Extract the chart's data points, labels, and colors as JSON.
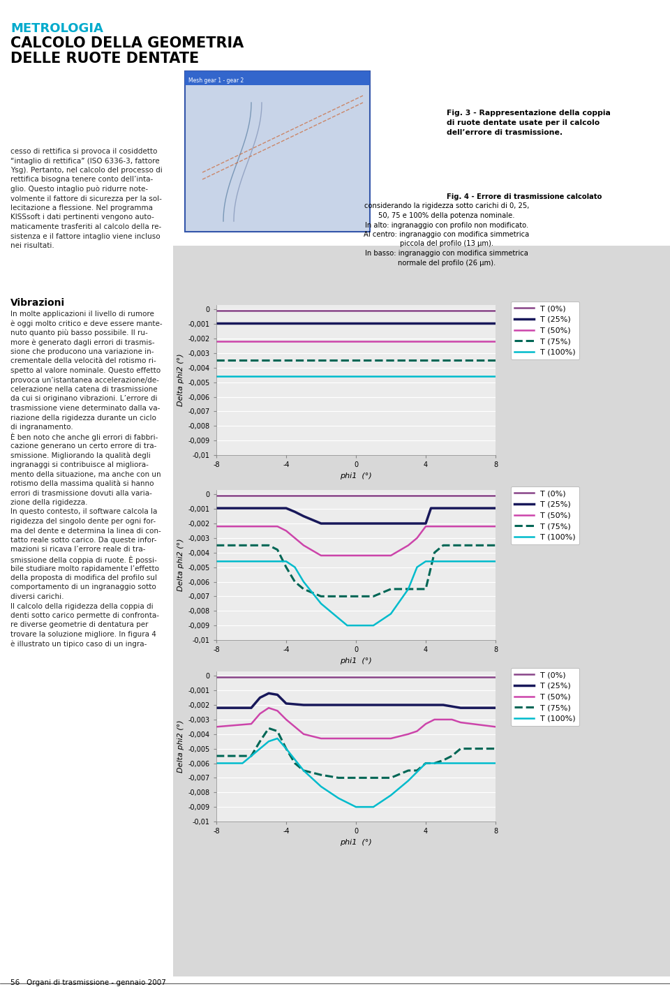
{
  "page_bg": "#f0f0f0",
  "chart_panel_bg": "#e0e0e0",
  "chart_bg": "#ececec",
  "title_color": "#00aacc",
  "text_color": "#222222",
  "header": {
    "line1": "METROLOGIA",
    "line2": "CALCOLO DELLA GEOMETRIA",
    "line3": "DELLE RUOTE DENTATE"
  },
  "fig3_caption": "Fig. 3 - Rappresentazione della coppia\ndi ruote dentate usate per il calcolo\ndell’errore di trasmissione.",
  "fig4_caption": "Fig. 4 - Errore di trasmissione calcolato\nconsiderando la rigidezza sotto carichi di 0, 25,\n50, 75 e 100% della potenza nominale.\nIn alto: ingranaggio con profilo non modificato.\nAl centro: ingranaggio con modifica simmetrica\npiccola del profilo (13 μm).\nIn basso: ingranaggio con modifica simmetrica\nnormale del profilo (26 μm).",
  "left_col_text": [
    "cesso di rettifica si provoca il cosiddetto",
    "“intaglio di rettifica” (ISO 6336-3, fattore",
    "Ysg). Pertanto, nel calcolo del processo di",
    "rettifica bisogna tenere conto dell’inta-",
    "glio. Questo intaglio può ridurre note-",
    "volmente il fattore di sicurezza per la sol-",
    "lecitazione a flessione. Nel programma",
    "KISSsoft i dati pertinenti vengono auto-",
    "maticamente trasferiti al calcolo della re-",
    "sistenza e il fattore intaglio viene incluso",
    "nei risultati."
  ],
  "vibrations_title": "Vibrazioni",
  "vibrations_text": [
    "In molte applicazioni il livello di rumore",
    "è oggi molto critico e deve essere mante-",
    "nuto quanto più basso possibile. Il ru-",
    "more è generato dagli errori di trasmis-",
    "sione che producono una variazione in-",
    "crementale della velocità del rotismo ri-",
    "spetto al valore nominale. Questo effetto",
    "provoca un’istantanea accelerazione/de-",
    "celerazione nella catena di trasmissione",
    "da cui si originano vibrazioni. L’errore di",
    "trasmissione viene determinato dalla va-",
    "riazione della rigidezza durante un ciclo",
    "di ingranamento.",
    "È ben noto che anche gli errori di fabbri-",
    "cazione generano un certo errore di tra-",
    "smissione. Migliorando la qualità degli",
    "ingranaggi si contribuisce al migliora-",
    "mento della situazione, ma anche con un",
    "rotismo della massima qualità si hanno",
    "errori di trasmissione dovuti alla varia-",
    "zione della rigidezza.",
    "In questo contesto, il software calcola la",
    "rigidezza del singolo dente per ogni for-",
    "ma del dente e determina la linea di con-",
    "tatto reale sotto carico. Da queste infor-",
    "mazioni si ricava l’errore reale di tra-",
    "smissione della coppia di ruote. È possi-",
    "bile studiare molto rapidamente l’effetto",
    "della proposta di modifica del profilo sul",
    "comportamento di un ingranaggio sotto",
    "diversi carichi.",
    "Il calcolo della rigidezza della coppia di",
    "denti sotto carico permette di confronta-",
    "re diverse geometrie di dentatura per",
    "trovare la soluzione migliore. In figura 4",
    "è illustrato un tipico caso di un ingra-"
  ],
  "footer_text": "56   Organi di trasmissione - gennaio 2007",
  "charts": [
    {
      "ylabel": "Delta phi2 (°)",
      "xlabel": "phi1  (°)",
      "xlim": [
        -8,
        8
      ],
      "ylim": [
        -0.01,
        0.0003
      ],
      "yticks": [
        0,
        -0.001,
        -0.002,
        -0.003,
        -0.004,
        -0.005,
        -0.006,
        -0.007,
        -0.008,
        -0.009,
        -0.01
      ],
      "xticks": [
        -8,
        -4,
        0,
        4,
        8
      ],
      "series": [
        {
          "label": "T (0%)",
          "color": "#884488",
          "linestyle": "-",
          "lw": 1.8,
          "x": [
            -8,
            8
          ],
          "y": [
            -0.0001,
            -0.0001
          ]
        },
        {
          "label": "T (25%)",
          "color": "#18185a",
          "linestyle": "-",
          "lw": 2.5,
          "x": [
            -8,
            -4.8,
            -4.6,
            -4.4,
            4.4,
            4.6,
            4.8,
            8
          ],
          "y": [
            -0.00095,
            -0.00095,
            -0.00095,
            -0.00095,
            -0.00095,
            -0.00095,
            -0.00095,
            -0.00095
          ]
        },
        {
          "label": "T (50%)",
          "color": "#cc44aa",
          "linestyle": "-",
          "lw": 1.8,
          "x": [
            -8,
            -4.6,
            -4.4,
            4.4,
            4.6,
            8
          ],
          "y": [
            -0.0022,
            -0.0022,
            -0.0022,
            -0.0022,
            -0.0022,
            -0.0022
          ]
        },
        {
          "label": "T (75%)",
          "color": "#006655",
          "linestyle": "--",
          "lw": 2.2,
          "x": [
            -8,
            -4.6,
            -4.4,
            4.4,
            4.6,
            8
          ],
          "y": [
            -0.0035,
            -0.0035,
            -0.0035,
            -0.0035,
            -0.0035,
            -0.0035
          ]
        },
        {
          "label": "T (100%)",
          "color": "#00bbcc",
          "linestyle": "-",
          "lw": 1.8,
          "x": [
            -8,
            -4.6,
            -4.4,
            4.4,
            4.6,
            8
          ],
          "y": [
            -0.0046,
            -0.0046,
            -0.0046,
            -0.0046,
            -0.0046,
            -0.0046
          ]
        }
      ]
    },
    {
      "ylabel": "Delta phi2 (°)",
      "xlabel": "phi1  (°)",
      "xlim": [
        -8,
        8
      ],
      "ylim": [
        -0.01,
        0.0003
      ],
      "yticks": [
        0,
        -0.001,
        -0.002,
        -0.003,
        -0.004,
        -0.005,
        -0.006,
        -0.007,
        -0.008,
        -0.009,
        -0.01
      ],
      "xticks": [
        -8,
        -4,
        0,
        4,
        8
      ],
      "series": [
        {
          "label": "T (0%)",
          "color": "#884488",
          "linestyle": "-",
          "lw": 1.8,
          "x": [
            -8,
            8
          ],
          "y": [
            -0.0001,
            -0.0001
          ]
        },
        {
          "label": "T (25%)",
          "color": "#18185a",
          "linestyle": "-",
          "lw": 2.5,
          "x": [
            -8,
            -5.0,
            -4.5,
            -4.0,
            -3.5,
            -3.0,
            -2.0,
            -1.0,
            0,
            1.0,
            2.0,
            3.0,
            4.0,
            4.3,
            4.6,
            5.0,
            8
          ],
          "y": [
            -0.00095,
            -0.00095,
            -0.00095,
            -0.00095,
            -0.0012,
            -0.0015,
            -0.002,
            -0.002,
            -0.002,
            -0.002,
            -0.002,
            -0.002,
            -0.002,
            -0.00095,
            -0.00095,
            -0.00095,
            -0.00095
          ]
        },
        {
          "label": "T (50%)",
          "color": "#cc44aa",
          "linestyle": "-",
          "lw": 1.8,
          "x": [
            -8,
            -5.5,
            -5.0,
            -4.5,
            -4.0,
            -3.5,
            -3.0,
            -2.0,
            -1.0,
            0,
            1.0,
            2.0,
            3.0,
            3.5,
            4.0,
            4.5,
            5.0,
            5.5,
            8
          ],
          "y": [
            -0.0022,
            -0.0022,
            -0.0022,
            -0.0022,
            -0.0025,
            -0.003,
            -0.0035,
            -0.0042,
            -0.0042,
            -0.0042,
            -0.0042,
            -0.0042,
            -0.0035,
            -0.003,
            -0.0022,
            -0.0022,
            -0.0022,
            -0.0022,
            -0.0022
          ]
        },
        {
          "label": "T (75%)",
          "color": "#006655",
          "linestyle": "--",
          "lw": 2.2,
          "x": [
            -8,
            -5.5,
            -5.0,
            -4.5,
            -4.0,
            -3.5,
            -3.0,
            -2.0,
            -1.0,
            0,
            1.0,
            2.0,
            3.0,
            3.5,
            4.0,
            4.5,
            5.0,
            5.5,
            8
          ],
          "y": [
            -0.0035,
            -0.0035,
            -0.0035,
            -0.0038,
            -0.005,
            -0.006,
            -0.0065,
            -0.007,
            -0.007,
            -0.007,
            -0.007,
            -0.0065,
            -0.0065,
            -0.0065,
            -0.0065,
            -0.004,
            -0.0035,
            -0.0035,
            -0.0035
          ]
        },
        {
          "label": "T (100%)",
          "color": "#00bbcc",
          "linestyle": "-",
          "lw": 1.8,
          "x": [
            -8,
            -5.5,
            -5.0,
            -4.5,
            -4.0,
            -3.5,
            -3.0,
            -2.0,
            -1.0,
            -0.5,
            0,
            0.5,
            1.0,
            2.0,
            3.0,
            3.5,
            4.0,
            4.5,
            5.0,
            5.5,
            8
          ],
          "y": [
            -0.0046,
            -0.0046,
            -0.0046,
            -0.0046,
            -0.0046,
            -0.005,
            -0.006,
            -0.0075,
            -0.0085,
            -0.009,
            -0.009,
            -0.009,
            -0.009,
            -0.0082,
            -0.0065,
            -0.005,
            -0.0046,
            -0.0046,
            -0.0046,
            -0.0046,
            -0.0046
          ]
        }
      ]
    },
    {
      "ylabel": "Delta phi2 (°)",
      "xlabel": "phi1  (°)",
      "xlim": [
        -8,
        8
      ],
      "ylim": [
        -0.01,
        0.0003
      ],
      "yticks": [
        0,
        -0.001,
        -0.002,
        -0.003,
        -0.004,
        -0.005,
        -0.006,
        -0.007,
        -0.008,
        -0.009,
        -0.01
      ],
      "xticks": [
        -8,
        -4,
        0,
        4,
        8
      ],
      "series": [
        {
          "label": "T (0%)",
          "color": "#884488",
          "linestyle": "-",
          "lw": 1.8,
          "x": [
            -8,
            8
          ],
          "y": [
            -0.0001,
            -0.0001
          ]
        },
        {
          "label": "T (25%)",
          "color": "#18185a",
          "linestyle": "-",
          "lw": 2.5,
          "x": [
            -8,
            -6.0,
            -5.5,
            -5.0,
            -4.5,
            -4.0,
            -3.0,
            -2.0,
            -1.0,
            0,
            1.0,
            2.0,
            3.0,
            4.0,
            5.0,
            6.0,
            8
          ],
          "y": [
            -0.0022,
            -0.0022,
            -0.0015,
            -0.0012,
            -0.0013,
            -0.0019,
            -0.002,
            -0.002,
            -0.002,
            -0.002,
            -0.002,
            -0.002,
            -0.002,
            -0.002,
            -0.002,
            -0.0022,
            -0.0022
          ]
        },
        {
          "label": "T (50%)",
          "color": "#cc44aa",
          "linestyle": "-",
          "lw": 1.8,
          "x": [
            -8,
            -6.0,
            -5.5,
            -5.0,
            -4.5,
            -4.0,
            -3.5,
            -3.0,
            -2.0,
            -1.0,
            0,
            1.0,
            2.0,
            3.0,
            3.5,
            4.0,
            4.5,
            5.0,
            5.5,
            6.0,
            8
          ],
          "y": [
            -0.0035,
            -0.0033,
            -0.0026,
            -0.0022,
            -0.0024,
            -0.003,
            -0.0035,
            -0.004,
            -0.0043,
            -0.0043,
            -0.0043,
            -0.0043,
            -0.0043,
            -0.004,
            -0.0038,
            -0.0033,
            -0.003,
            -0.003,
            -0.003,
            -0.0032,
            -0.0035
          ]
        },
        {
          "label": "T (75%)",
          "color": "#006655",
          "linestyle": "--",
          "lw": 2.2,
          "x": [
            -8,
            -6.0,
            -5.5,
            -5.0,
            -4.5,
            -4.0,
            -3.5,
            -3.0,
            -2.0,
            -1.0,
            0,
            1.0,
            2.0,
            3.0,
            3.5,
            4.0,
            4.5,
            5.0,
            5.5,
            6.0,
            8
          ],
          "y": [
            -0.0055,
            -0.0055,
            -0.0045,
            -0.0036,
            -0.0038,
            -0.005,
            -0.006,
            -0.0065,
            -0.0068,
            -0.007,
            -0.007,
            -0.007,
            -0.007,
            -0.0065,
            -0.0065,
            -0.006,
            -0.006,
            -0.0058,
            -0.0055,
            -0.005,
            -0.005
          ]
        },
        {
          "label": "T (100%)",
          "color": "#00bbcc",
          "linestyle": "-",
          "lw": 1.8,
          "x": [
            -8,
            -6.5,
            -6.0,
            -5.5,
            -5.0,
            -4.5,
            -4.0,
            -3.0,
            -2.0,
            -1.0,
            0,
            1.0,
            2.0,
            3.0,
            4.0,
            4.5,
            5.0,
            5.5,
            6.0,
            6.5,
            8
          ],
          "y": [
            -0.006,
            -0.006,
            -0.0055,
            -0.005,
            -0.0045,
            -0.0043,
            -0.005,
            -0.0065,
            -0.0076,
            -0.0084,
            -0.009,
            -0.009,
            -0.0082,
            -0.0072,
            -0.006,
            -0.006,
            -0.006,
            -0.006,
            -0.006,
            -0.006,
            -0.006
          ]
        }
      ]
    }
  ],
  "legend": {
    "labels": [
      "T (0%)",
      "T (25%)",
      "T (50%)",
      "T (75%)",
      "T (100%)"
    ],
    "colors": [
      "#884488",
      "#18185a",
      "#cc44aa",
      "#006655",
      "#00bbcc"
    ],
    "linestyles": [
      "-",
      "-",
      "-",
      "--",
      "-"
    ],
    "linewidths": [
      1.8,
      2.5,
      1.8,
      2.2,
      1.8
    ]
  }
}
